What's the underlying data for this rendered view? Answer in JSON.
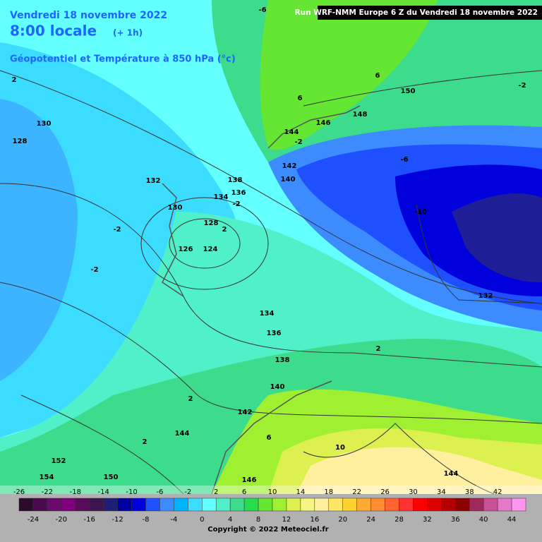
{
  "header": {
    "date": "Vendredi 18 novembre 2022",
    "time": "8:00 locale",
    "offset": "(+ 1h)",
    "field": "Géopotentiel et Température à 850 hPa (°c)",
    "run": "Run WRF-NMM Europe 6 Z du Vendredi 18 novembre 2022"
  },
  "contour_labels": [
    130,
    128,
    2,
    132,
    130,
    138,
    134,
    136,
    -2,
    128,
    2,
    126,
    124,
    -2,
    -2,
    134,
    136,
    138,
    140,
    2,
    142,
    144,
    2,
    6,
    10,
    152,
    154,
    150,
    146,
    144,
    2,
    132,
    -10,
    -6,
    150,
    -2,
    6,
    6,
    148,
    146,
    144,
    -2,
    142,
    140,
    -6
  ],
  "colorbar": {
    "top_labels": [
      -26,
      -22,
      -18,
      -14,
      -10,
      -6,
      -2,
      2,
      6,
      10,
      14,
      18,
      22,
      26,
      30,
      34,
      38,
      42
    ],
    "bottom_labels": [
      -24,
      -20,
      -16,
      -12,
      -8,
      -4,
      0,
      4,
      8,
      12,
      16,
      20,
      24,
      28,
      32,
      36,
      40,
      44
    ],
    "colors": [
      "#2d0a2d",
      "#4b0a4b",
      "#6a0a6a",
      "#800080",
      "#5a0a5a",
      "#3c1450",
      "#1e1e78",
      "#0000a0",
      "#0000dc",
      "#1e50ff",
      "#3c8cff",
      "#00b4ff",
      "#3cdcff",
      "#64ffff",
      "#50f0c8",
      "#3cdc8c",
      "#28dc50",
      "#64e632",
      "#a0f032",
      "#dcf050",
      "#f5f582",
      "#fff0a0",
      "#ffe664",
      "#ffd232",
      "#ffaa32",
      "#ff8c32",
      "#ff6432",
      "#ff3232",
      "#ff0000",
      "#dc0000",
      "#b40000",
      "#8c0000",
      "#a0285a",
      "#c85096",
      "#e678c8",
      "#ff96f0"
    ]
  },
  "copyright": "Copyright © 2022 Meteociel.fr"
}
